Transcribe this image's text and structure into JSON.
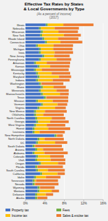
{
  "chart_data": {
    "type": "bar",
    "orientation": "horizontal",
    "stacked": true,
    "title": "Effective Tax Rates by States\n& Local Governments by Type",
    "subtitle": "(As a percent of income)",
    "annotations": [
      "(2017)"
    ],
    "categories": [
      "Illinois",
      "Nebraska",
      "Wisconsin",
      "New York",
      "Rhode Island",
      "Connecticut",
      "Ohio",
      "Michigan",
      "Iowa",
      "New Jersey",
      "Pennsylvania",
      "Arkansas",
      "Kansas",
      "Mississippi",
      "Kentucky",
      "Maryland",
      "Indiana",
      "Washington",
      "Maine",
      "Minnesota",
      "Massachusetts",
      "Texas",
      "Missouri",
      "Vermont",
      "Virginia",
      "New Mexico",
      "Oklahoma",
      "North Carolina",
      "Georgia",
      "West Virginia",
      "Hawaii",
      "Louisiana",
      "New Hampshire",
      "North Dakota",
      "DC",
      "South Dakota",
      "Arizona",
      "Alabama",
      "Colorado",
      "Utah",
      "Oregon",
      "Florida",
      "South Carolina",
      "California",
      "Idaho",
      "Tennessee",
      "Nevada",
      "Wyoming",
      "Montana",
      "Delaware",
      "Alaska"
    ],
    "series": [
      {
        "name": "Property tax",
        "color": "#4472c4",
        "values": [
          4.2,
          2.8,
          3.2,
          3.0,
          3.5,
          4.0,
          2.2,
          2.8,
          2.8,
          3.5,
          2.8,
          1.8,
          2.5,
          1.8,
          2.2,
          2.5,
          2.2,
          2.8,
          3.2,
          2.8,
          3.2,
          3.8,
          2.2,
          3.2,
          2.5,
          1.8,
          1.8,
          2.0,
          2.2,
          1.8,
          1.5,
          1.5,
          6.0,
          2.5,
          2.2,
          1.5,
          2.0,
          1.5,
          2.2,
          2.0,
          2.8,
          2.0,
          2.2,
          3.0,
          1.8,
          1.5,
          1.5,
          2.5,
          2.5,
          2.0,
          2.0
        ]
      },
      {
        "name": "Fees",
        "color": "#70ad47",
        "values": [
          0.4,
          0.4,
          0.4,
          0.4,
          0.4,
          0.4,
          0.4,
          0.4,
          0.4,
          0.4,
          0.4,
          0.4,
          0.4,
          0.4,
          0.4,
          0.4,
          0.4,
          0.4,
          0.4,
          0.4,
          0.4,
          0.4,
          0.4,
          0.4,
          0.4,
          0.4,
          0.4,
          0.4,
          0.4,
          0.4,
          0.4,
          0.4,
          0.4,
          0.4,
          0.4,
          0.4,
          0.4,
          0.4,
          0.4,
          0.4,
          0.4,
          0.4,
          0.4,
          0.4,
          0.4,
          0.4,
          0.4,
          0.4,
          0.4,
          0.4,
          0.4
        ]
      },
      {
        "name": "Income tax",
        "color": "#ffc000",
        "values": [
          3.2,
          2.8,
          3.2,
          4.5,
          2.8,
          2.8,
          3.2,
          2.5,
          2.8,
          2.0,
          3.2,
          2.2,
          2.2,
          1.2,
          2.8,
          4.0,
          3.0,
          0.1,
          2.2,
          3.2,
          3.5,
          0.1,
          3.0,
          3.0,
          3.2,
          1.8,
          1.5,
          3.0,
          2.5,
          2.2,
          2.8,
          1.0,
          0.1,
          1.0,
          3.5,
          0.1,
          1.2,
          2.0,
          2.5,
          2.8,
          3.5,
          0.1,
          2.0,
          3.2,
          2.0,
          0.3,
          0.1,
          0.1,
          2.5,
          1.8,
          0.1
        ]
      },
      {
        "name": "Sales & excise tax",
        "color": "#ed7d31",
        "values": [
          6.2,
          5.0,
          4.0,
          3.5,
          4.2,
          4.5,
          4.0,
          4.0,
          3.8,
          3.2,
          3.0,
          4.8,
          4.0,
          5.5,
          3.8,
          2.5,
          3.5,
          4.5,
          2.5,
          2.5,
          1.8,
          4.5,
          3.2,
          2.0,
          2.2,
          4.5,
          4.2,
          2.8,
          3.8,
          3.8,
          4.5,
          5.2,
          1.2,
          4.0,
          2.5,
          5.5,
          4.2,
          4.8,
          2.8,
          3.0,
          1.5,
          5.2,
          3.5,
          1.5,
          3.0,
          4.5,
          4.8,
          3.0,
          1.5,
          1.5,
          2.0
        ]
      }
    ],
    "xlim": [
      0,
      16
    ],
    "xticks": [
      {
        "value": 0,
        "label": "0%"
      },
      {
        "value": 4,
        "label": "4%"
      },
      {
        "value": 8,
        "label": "8%"
      },
      {
        "value": 12,
        "label": "12%"
      },
      {
        "value": 16,
        "label": "16%"
      }
    ],
    "grid": true,
    "legend": "bottom"
  }
}
